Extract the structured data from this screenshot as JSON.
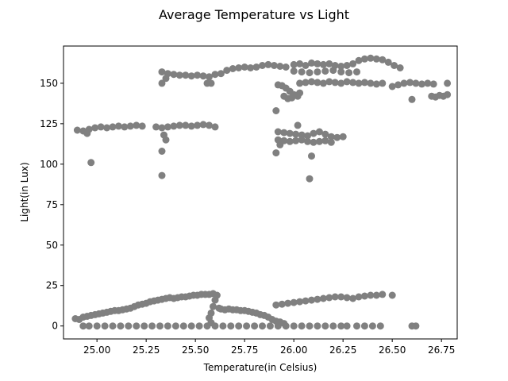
{
  "chart_data": {
    "type": "scatter",
    "title": "Average Temperature vs Light",
    "xlabel": "Temperature(in Celsius)",
    "ylabel": "Light(in Lux)",
    "xlim": [
      24.83,
      26.83
    ],
    "ylim": [
      -8,
      173
    ],
    "xticks": [
      25.0,
      25.25,
      25.5,
      25.75,
      26.0,
      26.25,
      26.5,
      26.75
    ],
    "xtick_labels": [
      "25.00",
      "25.25",
      "25.50",
      "25.75",
      "26.00",
      "26.25",
      "26.50",
      "26.75"
    ],
    "yticks": [
      0,
      25,
      50,
      75,
      100,
      125,
      150
    ],
    "ytick_labels": [
      "0",
      "25",
      "50",
      "75",
      "100",
      "125",
      "150"
    ],
    "grid": false,
    "marker_color": "#808080",
    "series": [
      {
        "values": [
          [
            24.89,
            4.5
          ],
          [
            24.91,
            4.0
          ],
          [
            24.93,
            5.5
          ],
          [
            24.95,
            6.0
          ],
          [
            24.97,
            6.5
          ],
          [
            24.99,
            7.0
          ],
          [
            25.01,
            7.5
          ],
          [
            25.03,
            8.0
          ],
          [
            25.05,
            8.5
          ],
          [
            25.07,
            9.0
          ],
          [
            25.09,
            9.5
          ],
          [
            25.11,
            9.5
          ],
          [
            25.13,
            10.0
          ],
          [
            25.15,
            10.5
          ],
          [
            25.17,
            11.0
          ],
          [
            25.19,
            12.0
          ],
          [
            25.21,
            13.0
          ],
          [
            25.23,
            13.5
          ],
          [
            25.25,
            14.0
          ],
          [
            25.27,
            15.0
          ],
          [
            25.29,
            15.5
          ],
          [
            25.31,
            16.0
          ],
          [
            25.33,
            16.5
          ],
          [
            25.35,
            17.0
          ],
          [
            25.37,
            17.5
          ],
          [
            25.39,
            17.0
          ],
          [
            25.41,
            17.5
          ],
          [
            25.43,
            18.0
          ],
          [
            25.45,
            18.0
          ],
          [
            25.47,
            18.5
          ],
          [
            25.49,
            19.0
          ],
          [
            25.51,
            19.0
          ],
          [
            25.53,
            19.5
          ],
          [
            25.55,
            19.5
          ],
          [
            25.57,
            19.5
          ],
          [
            25.59,
            20.0
          ],
          [
            25.61,
            19.0
          ],
          [
            25.6,
            16.0
          ],
          [
            25.59,
            12.0
          ],
          [
            25.58,
            8.0
          ],
          [
            25.57,
            5.0
          ],
          [
            25.58,
            2.0
          ],
          [
            25.62,
            11.0
          ],
          [
            25.63,
            10.5
          ],
          [
            25.65,
            10.0
          ],
          [
            25.67,
            10.5
          ],
          [
            25.69,
            10.0
          ],
          [
            25.71,
            10.0
          ],
          [
            25.73,
            9.5
          ],
          [
            25.75,
            9.5
          ],
          [
            25.77,
            9.0
          ],
          [
            25.79,
            8.5
          ],
          [
            25.81,
            8.0
          ],
          [
            25.83,
            7.0
          ],
          [
            25.85,
            6.5
          ],
          [
            25.87,
            5.5
          ],
          [
            25.89,
            4.0
          ],
          [
            25.91,
            3.0
          ],
          [
            25.93,
            2.5
          ],
          [
            25.95,
            1.5
          ],
          [
            24.93,
            0.0
          ],
          [
            24.96,
            0.0
          ],
          [
            25.0,
            0.0
          ],
          [
            25.04,
            0.0
          ],
          [
            25.08,
            0.0
          ],
          [
            25.12,
            0.0
          ],
          [
            25.16,
            0.0
          ],
          [
            25.2,
            0.0
          ],
          [
            25.24,
            0.0
          ],
          [
            25.28,
            0.0
          ],
          [
            25.32,
            0.0
          ],
          [
            25.36,
            0.0
          ],
          [
            25.4,
            0.0
          ],
          [
            25.44,
            0.0
          ],
          [
            25.48,
            0.0
          ],
          [
            25.52,
            0.0
          ],
          [
            25.56,
            0.0
          ],
          [
            25.6,
            0.0
          ],
          [
            25.64,
            0.0
          ],
          [
            25.68,
            0.0
          ],
          [
            25.72,
            0.0
          ],
          [
            25.76,
            0.0
          ],
          [
            25.8,
            0.0
          ],
          [
            25.84,
            0.0
          ],
          [
            25.88,
            0.0
          ],
          [
            25.92,
            0.0
          ],
          [
            25.96,
            0.0
          ],
          [
            26.0,
            0.0
          ],
          [
            26.04,
            0.0
          ],
          [
            26.08,
            0.0
          ],
          [
            26.12,
            0.0
          ],
          [
            26.16,
            0.0
          ],
          [
            26.2,
            0.0
          ],
          [
            26.24,
            0.0
          ],
          [
            26.27,
            0.0
          ],
          [
            26.32,
            0.0
          ],
          [
            26.36,
            0.0
          ],
          [
            26.4,
            0.0
          ],
          [
            26.44,
            0.0
          ],
          [
            26.6,
            0.0
          ],
          [
            26.62,
            0.0
          ],
          [
            25.91,
            13.0
          ],
          [
            25.94,
            13.5
          ],
          [
            25.97,
            14.0
          ],
          [
            26.0,
            14.5
          ],
          [
            26.03,
            15.0
          ],
          [
            26.06,
            15.5
          ],
          [
            26.09,
            16.0
          ],
          [
            26.12,
            16.5
          ],
          [
            26.15,
            17.0
          ],
          [
            26.18,
            17.5
          ],
          [
            26.21,
            18.0
          ],
          [
            26.24,
            18.0
          ],
          [
            26.27,
            17.5
          ],
          [
            26.3,
            17.0
          ],
          [
            26.33,
            18.0
          ],
          [
            26.36,
            18.5
          ],
          [
            26.39,
            19.0
          ],
          [
            26.42,
            19.0
          ],
          [
            26.45,
            19.5
          ],
          [
            26.5,
            19.0
          ],
          [
            24.9,
            121.0
          ],
          [
            24.93,
            120.5
          ],
          [
            24.96,
            121.5
          ],
          [
            24.99,
            122.5
          ],
          [
            25.02,
            123.0
          ],
          [
            25.05,
            122.5
          ],
          [
            25.08,
            123.0
          ],
          [
            25.11,
            123.5
          ],
          [
            25.14,
            123.0
          ],
          [
            25.17,
            123.5
          ],
          [
            25.2,
            124.0
          ],
          [
            25.23,
            123.5
          ],
          [
            24.95,
            119.0
          ],
          [
            24.97,
            101.0
          ],
          [
            25.3,
            123.0
          ],
          [
            25.33,
            122.5
          ],
          [
            25.36,
            123.0
          ],
          [
            25.39,
            123.5
          ],
          [
            25.42,
            124.0
          ],
          [
            25.45,
            124.0
          ],
          [
            25.48,
            123.5
          ],
          [
            25.51,
            124.0
          ],
          [
            25.54,
            124.5
          ],
          [
            25.57,
            124.0
          ],
          [
            25.6,
            123.0
          ],
          [
            25.34,
            118.0
          ],
          [
            25.35,
            115.0
          ],
          [
            25.33,
            108.0
          ],
          [
            25.33,
            93.0
          ],
          [
            25.33,
            157.0
          ],
          [
            25.36,
            156.0
          ],
          [
            25.39,
            155.5
          ],
          [
            25.42,
            155.0
          ],
          [
            25.45,
            155.0
          ],
          [
            25.48,
            154.5
          ],
          [
            25.51,
            155.0
          ],
          [
            25.54,
            154.5
          ],
          [
            25.57,
            154.0
          ],
          [
            25.33,
            150.0
          ],
          [
            25.56,
            150.0
          ],
          [
            25.58,
            150.0
          ],
          [
            25.35,
            153.0
          ],
          [
            25.6,
            155.5
          ],
          [
            25.63,
            156.0
          ],
          [
            25.66,
            158.0
          ],
          [
            25.69,
            159.0
          ],
          [
            25.72,
            159.5
          ],
          [
            25.75,
            160.0
          ],
          [
            25.78,
            159.5
          ],
          [
            25.81,
            160.0
          ],
          [
            25.84,
            161.0
          ],
          [
            25.87,
            161.5
          ],
          [
            25.9,
            161.0
          ],
          [
            25.93,
            160.5
          ],
          [
            25.96,
            160.0
          ],
          [
            26.0,
            161.5
          ],
          [
            26.03,
            162.0
          ],
          [
            26.06,
            161.0
          ],
          [
            26.09,
            162.5
          ],
          [
            26.12,
            162.0
          ],
          [
            26.15,
            161.5
          ],
          [
            26.18,
            162.0
          ],
          [
            26.21,
            161.0
          ],
          [
            26.24,
            160.5
          ],
          [
            26.27,
            161.0
          ],
          [
            26.3,
            162.0
          ],
          [
            26.33,
            164.0
          ],
          [
            26.36,
            165.0
          ],
          [
            26.39,
            165.5
          ],
          [
            26.42,
            165.0
          ],
          [
            26.45,
            164.5
          ],
          [
            26.48,
            163.0
          ],
          [
            26.51,
            161.0
          ],
          [
            26.54,
            159.5
          ],
          [
            26.0,
            157.5
          ],
          [
            26.04,
            157.0
          ],
          [
            26.08,
            156.5
          ],
          [
            26.12,
            157.0
          ],
          [
            26.16,
            157.5
          ],
          [
            26.2,
            158.0
          ],
          [
            26.24,
            157.0
          ],
          [
            26.28,
            156.5
          ],
          [
            26.32,
            157.0
          ],
          [
            25.92,
            149.0
          ],
          [
            25.94,
            148.5
          ],
          [
            25.96,
            147.0
          ],
          [
            25.98,
            145.0
          ],
          [
            26.0,
            143.0
          ],
          [
            26.02,
            142.0
          ],
          [
            26.03,
            144.0
          ],
          [
            25.95,
            142.0
          ],
          [
            25.97,
            140.5
          ],
          [
            25.99,
            141.0
          ],
          [
            26.03,
            150.0
          ],
          [
            26.06,
            150.5
          ],
          [
            26.09,
            151.0
          ],
          [
            26.12,
            150.5
          ],
          [
            26.15,
            150.0
          ],
          [
            26.18,
            151.0
          ],
          [
            26.21,
            150.5
          ],
          [
            26.24,
            150.0
          ],
          [
            26.27,
            151.0
          ],
          [
            26.3,
            150.5
          ],
          [
            26.33,
            150.0
          ],
          [
            26.36,
            150.5
          ],
          [
            26.39,
            150.0
          ],
          [
            26.42,
            149.5
          ],
          [
            26.45,
            150.0
          ],
          [
            26.5,
            148.0
          ],
          [
            26.53,
            149.0
          ],
          [
            26.56,
            150.0
          ],
          [
            26.59,
            150.5
          ],
          [
            26.62,
            150.0
          ],
          [
            26.65,
            149.5
          ],
          [
            26.68,
            150.0
          ],
          [
            26.71,
            149.5
          ],
          [
            26.78,
            150.0
          ],
          [
            26.6,
            140.0
          ],
          [
            26.7,
            142.0
          ],
          [
            26.72,
            141.5
          ],
          [
            26.74,
            142.5
          ],
          [
            26.76,
            142.0
          ],
          [
            26.78,
            143.0
          ],
          [
            25.91,
            133.0
          ],
          [
            25.92,
            120.0
          ],
          [
            25.95,
            119.5
          ],
          [
            25.98,
            119.0
          ],
          [
            26.01,
            118.5
          ],
          [
            26.04,
            118.0
          ],
          [
            26.07,
            117.5
          ],
          [
            26.1,
            119.0
          ],
          [
            26.13,
            120.0
          ],
          [
            26.16,
            118.5
          ],
          [
            26.19,
            117.0
          ],
          [
            26.22,
            116.5
          ],
          [
            26.25,
            117.0
          ],
          [
            25.92,
            115.0
          ],
          [
            25.95,
            114.5
          ],
          [
            25.98,
            114.0
          ],
          [
            26.01,
            114.5
          ],
          [
            26.04,
            115.0
          ],
          [
            26.07,
            114.0
          ],
          [
            26.1,
            113.5
          ],
          [
            26.13,
            114.0
          ],
          [
            26.16,
            114.5
          ],
          [
            26.19,
            113.5
          ],
          [
            26.02,
            124.0
          ],
          [
            25.91,
            107.0
          ],
          [
            26.09,
            105.0
          ],
          [
            26.08,
            91.0
          ],
          [
            25.93,
            112.0
          ]
        ]
      }
    ]
  }
}
